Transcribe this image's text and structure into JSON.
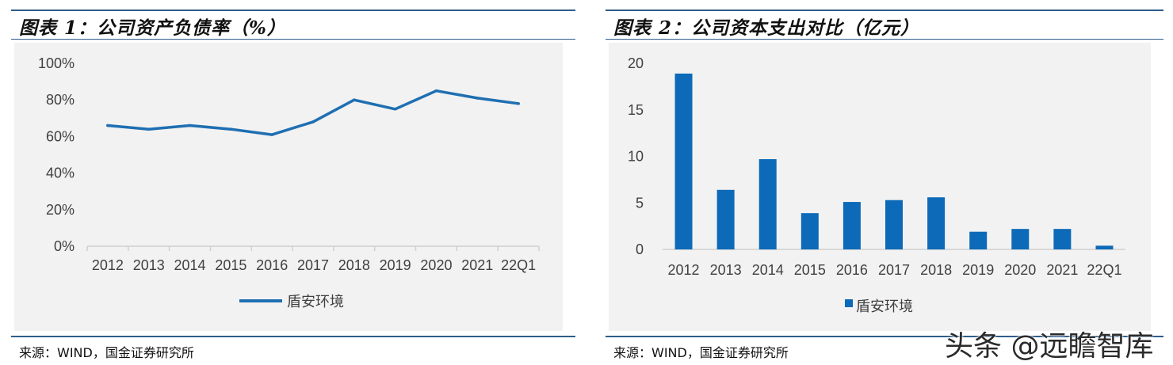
{
  "chart_data": [
    {
      "type": "line",
      "title": "图表 1：公司资产负债率（%）",
      "categories": [
        "2012",
        "2013",
        "2014",
        "2015",
        "2016",
        "2017",
        "2018",
        "2019",
        "2020",
        "2021",
        "22Q1"
      ],
      "series": [
        {
          "name": "盾安环境",
          "values": [
            66,
            64,
            66,
            64,
            61,
            68,
            80,
            75,
            85,
            81,
            78
          ]
        }
      ],
      "y_ticks": [
        "100%",
        "80%",
        "60%",
        "40%",
        "20%",
        "0%"
      ],
      "ylim": [
        0,
        100
      ],
      "xlabel": "",
      "ylabel": "",
      "legend_position": "bottom-center",
      "color": "#1f6fb2",
      "source": "来源：WIND，国金证券研究所"
    },
    {
      "type": "bar",
      "title": "图表 2：公司资本支出对比（亿元）",
      "categories": [
        "2012",
        "2013",
        "2014",
        "2015",
        "2016",
        "2017",
        "2018",
        "2019",
        "2020",
        "2021",
        "22Q1"
      ],
      "series": [
        {
          "name": "盾安环境",
          "values": [
            18.9,
            6.4,
            9.7,
            3.9,
            5.1,
            5.3,
            5.6,
            1.9,
            2.2,
            2.2,
            0.4
          ]
        }
      ],
      "y_ticks": [
        "20",
        "15",
        "10",
        "5",
        "0"
      ],
      "ylim": [
        0,
        20
      ],
      "xlabel": "",
      "ylabel": "",
      "legend_position": "bottom-center",
      "color": "#0c6ab8",
      "source": "来源：WIND，国金证券研究所"
    }
  ],
  "watermark": "头条 @远瞻智库"
}
